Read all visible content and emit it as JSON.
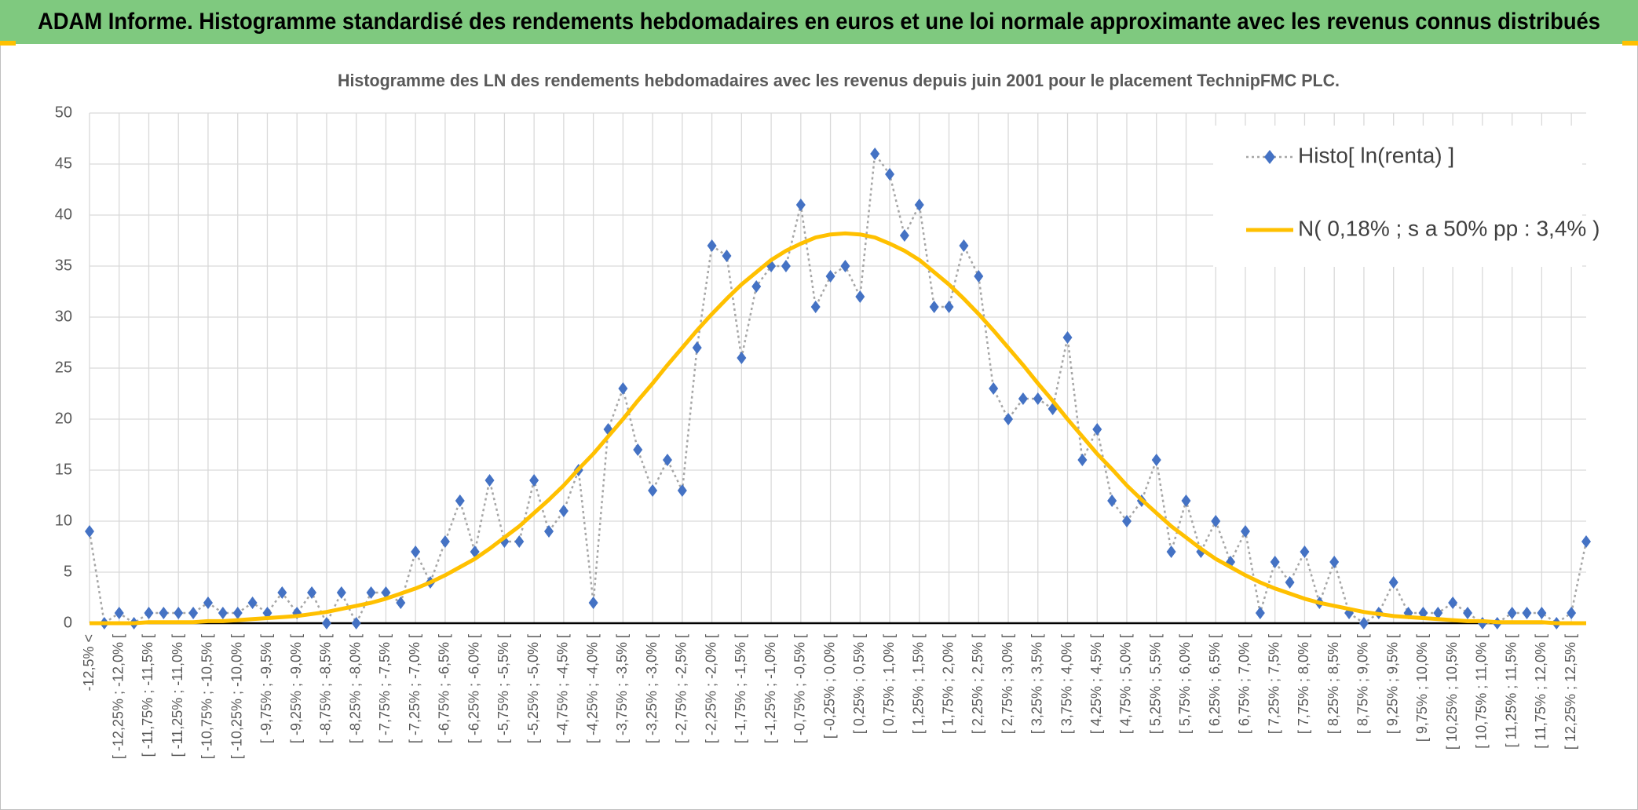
{
  "chart_data": {
    "type": "line",
    "header": "ADAM Informe. Histogramme standardisé des rendements hebdomadaires en euros et une loi normale approximante avec les revenus connus distribués",
    "title": "Histogramme des LN des rendements hebdomadaires avec les revenus depuis juin 2001 pour le placement TechnipFMC PLC.",
    "categories": [
      "-12,5% <",
      null,
      "[ -12,25% ; -12,0% [",
      null,
      "[ -11,75% ; -11,5% [",
      null,
      "[ -11,25% ; -11,0% [",
      null,
      "[ -10,75% ; -10,5% [",
      null,
      "[ -10,25% ; -10,0% [",
      null,
      "[ -9,75% ; -9,5% [",
      null,
      "[ -9,25% ; -9,0% [",
      null,
      "[ -8,75% ; -8,5% [",
      null,
      "[ -8,25% ; -8,0% [",
      null,
      "[ -7,75% ; -7,5% [",
      null,
      "[ -7,25% ; -7,0% [",
      null,
      "[ -6,75% ; -6,5% [",
      null,
      "[ -6,25% ; -6,0% [",
      null,
      "[ -5,75% ; -5,5% [",
      null,
      "[ -5,25% ; -5,0% [",
      null,
      "[ -4,75% ; -4,5% [",
      null,
      "[ -4,25% ; -4,0% [",
      null,
      "[ -3,75% ; -3,5% [",
      null,
      "[ -3,25% ; -3,0% [",
      null,
      "[ -2,75% ; -2,5% [",
      null,
      "[ -2,25% ; -2,0% [",
      null,
      "[ -1,75% ; -1,5% [",
      null,
      "[ -1,25% ; -1,0% [",
      null,
      "[ -0,75% ; -0,5% [",
      null,
      "[ -0,25% ; 0,0% [",
      null,
      "[ 0,25% ; 0,5% [",
      null,
      "[ 0,75% ; 1,0% [",
      null,
      "[ 1,25% ; 1,5% [",
      null,
      "[ 1,75% ; 2,0% [",
      null,
      "[ 2,25% ; 2,5% [",
      null,
      "[ 2,75% ; 3,0% [",
      null,
      "[ 3,25% ; 3,5% [",
      null,
      "[ 3,75% ; 4,0% [",
      null,
      "[ 4,25% ; 4,5% [",
      null,
      "[ 4,75% ; 5,0% [",
      null,
      "[ 5,25% ; 5,5% [",
      null,
      "[ 5,75% ; 6,0% [",
      null,
      "[ 6,25% ; 6,5% [",
      null,
      "[ 6,75% ; 7,0% [",
      null,
      "[ 7,25% ; 7,5% [",
      null,
      "[ 7,75% ; 8,0% [",
      null,
      "[ 8,25% ; 8,5% [",
      null,
      "[ 8,75% ; 9,0% [",
      null,
      "[ 9,25% ; 9,5% [",
      null,
      "[ 9,75% ; 10,0% [",
      null,
      "[ 10,25% ; 10,5% [",
      null,
      "[ 10,75% ; 11,0% [",
      null,
      "[ 11,25% ; 11,5% [",
      null,
      "[ 11,75% ; 12,0% [",
      null,
      "[ 12,25% ; 12,5% [",
      null
    ],
    "series": [
      {
        "name": "Histo[ ln(renta) ]",
        "color": "#4472c4",
        "line_color": "#a6a6a6",
        "marker": "diamond",
        "values": [
          9,
          0,
          1,
          0,
          1,
          1,
          1,
          1,
          2,
          1,
          1,
          2,
          1,
          3,
          1,
          3,
          0,
          3,
          0,
          3,
          3,
          2,
          7,
          4,
          8,
          12,
          7,
          14,
          8,
          8,
          14,
          9,
          11,
          15,
          2,
          19,
          23,
          17,
          13,
          16,
          13,
          27,
          37,
          36,
          26,
          33,
          35,
          35,
          41,
          31,
          34,
          35,
          32,
          46,
          44,
          38,
          41,
          31,
          31,
          37,
          34,
          23,
          20,
          22,
          22,
          21,
          28,
          16,
          19,
          12,
          10,
          12,
          16,
          7,
          12,
          7,
          10,
          6,
          9,
          1,
          6,
          4,
          7,
          2,
          6,
          1,
          0,
          1,
          4,
          1,
          1,
          1,
          2,
          1,
          0,
          0,
          1,
          1,
          1,
          0,
          1,
          8
        ]
      },
      {
        "name": "N( 0,18% ; s a 50% pp : 3,4% )",
        "color": "#ffc000",
        "values": [
          0,
          0,
          0,
          0,
          0.1,
          0.1,
          0.1,
          0.1,
          0.2,
          0.2,
          0.3,
          0.4,
          0.5,
          0.6,
          0.7,
          0.9,
          1.1,
          1.4,
          1.7,
          2.0,
          2.4,
          2.9,
          3.4,
          4.0,
          4.7,
          5.5,
          6.3,
          7.3,
          8.4,
          9.5,
          10.8,
          12.1,
          13.5,
          15.1,
          16.6,
          18.3,
          20.0,
          21.8,
          23.5,
          25.3,
          27.0,
          28.7,
          30.3,
          31.8,
          33.2,
          34.4,
          35.6,
          36.5,
          37.2,
          37.8,
          38.1,
          38.2,
          38.1,
          37.8,
          37.2,
          36.5,
          35.6,
          34.4,
          33.2,
          31.8,
          30.3,
          28.7,
          27.0,
          25.3,
          23.5,
          21.8,
          20.0,
          18.3,
          16.6,
          15.1,
          13.5,
          12.1,
          10.8,
          9.5,
          8.4,
          7.3,
          6.3,
          5.5,
          4.7,
          4.0,
          3.4,
          2.9,
          2.4,
          2.0,
          1.7,
          1.4,
          1.1,
          0.9,
          0.7,
          0.6,
          0.5,
          0.4,
          0.3,
          0.2,
          0.2,
          0.1,
          0.1,
          0.1,
          0.1,
          0,
          0,
          0
        ]
      }
    ],
    "ylim": [
      0,
      50
    ],
    "yticks": [
      0,
      5,
      10,
      15,
      20,
      25,
      30,
      35,
      40,
      45,
      50
    ],
    "grid": true,
    "legend": "top-right"
  }
}
